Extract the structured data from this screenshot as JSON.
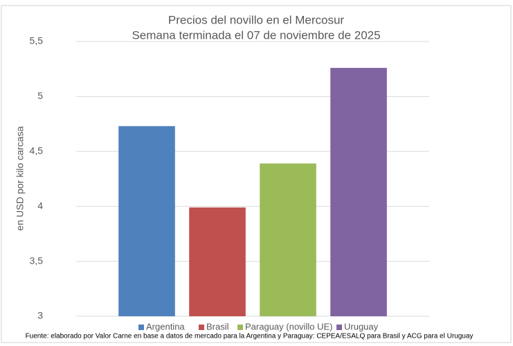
{
  "chart_data": {
    "type": "bar",
    "title": "Precios del novillo en el Mercosur",
    "subtitle": "Semana terminada el 07 de noviembre de 2025",
    "y_label": "en USD por kilo carcasa",
    "categories": [
      null
    ],
    "series": [
      {
        "name": "Argentina",
        "color": "#4f81bd",
        "values": [
          4.73
        ]
      },
      {
        "name": "Brasil",
        "color": "#c0504d",
        "values": [
          3.99
        ]
      },
      {
        "name": "Paraguay (novillo UE)",
        "color": "#9bbb59",
        "values": [
          4.39
        ]
      },
      {
        "name": "Uruguay",
        "color": "#8064a2",
        "values": [
          5.26
        ]
      }
    ],
    "ylim": [
      3,
      5.5
    ],
    "yticks": [
      3,
      {
        "value": 3.5,
        "label": "3,5"
      },
      4,
      {
        "value": 4.5,
        "label": "4,5"
      },
      5,
      {
        "value": 5.5,
        "label": "5,5"
      }
    ],
    "grid": true,
    "legend": "bottom",
    "footnote": "Fuente: elaborado por Valor Carne en base a datos de mercado para la Argentina y Paraguay: CEPEA/ESALQ para Brasil y ACG para el Uruguay"
  }
}
